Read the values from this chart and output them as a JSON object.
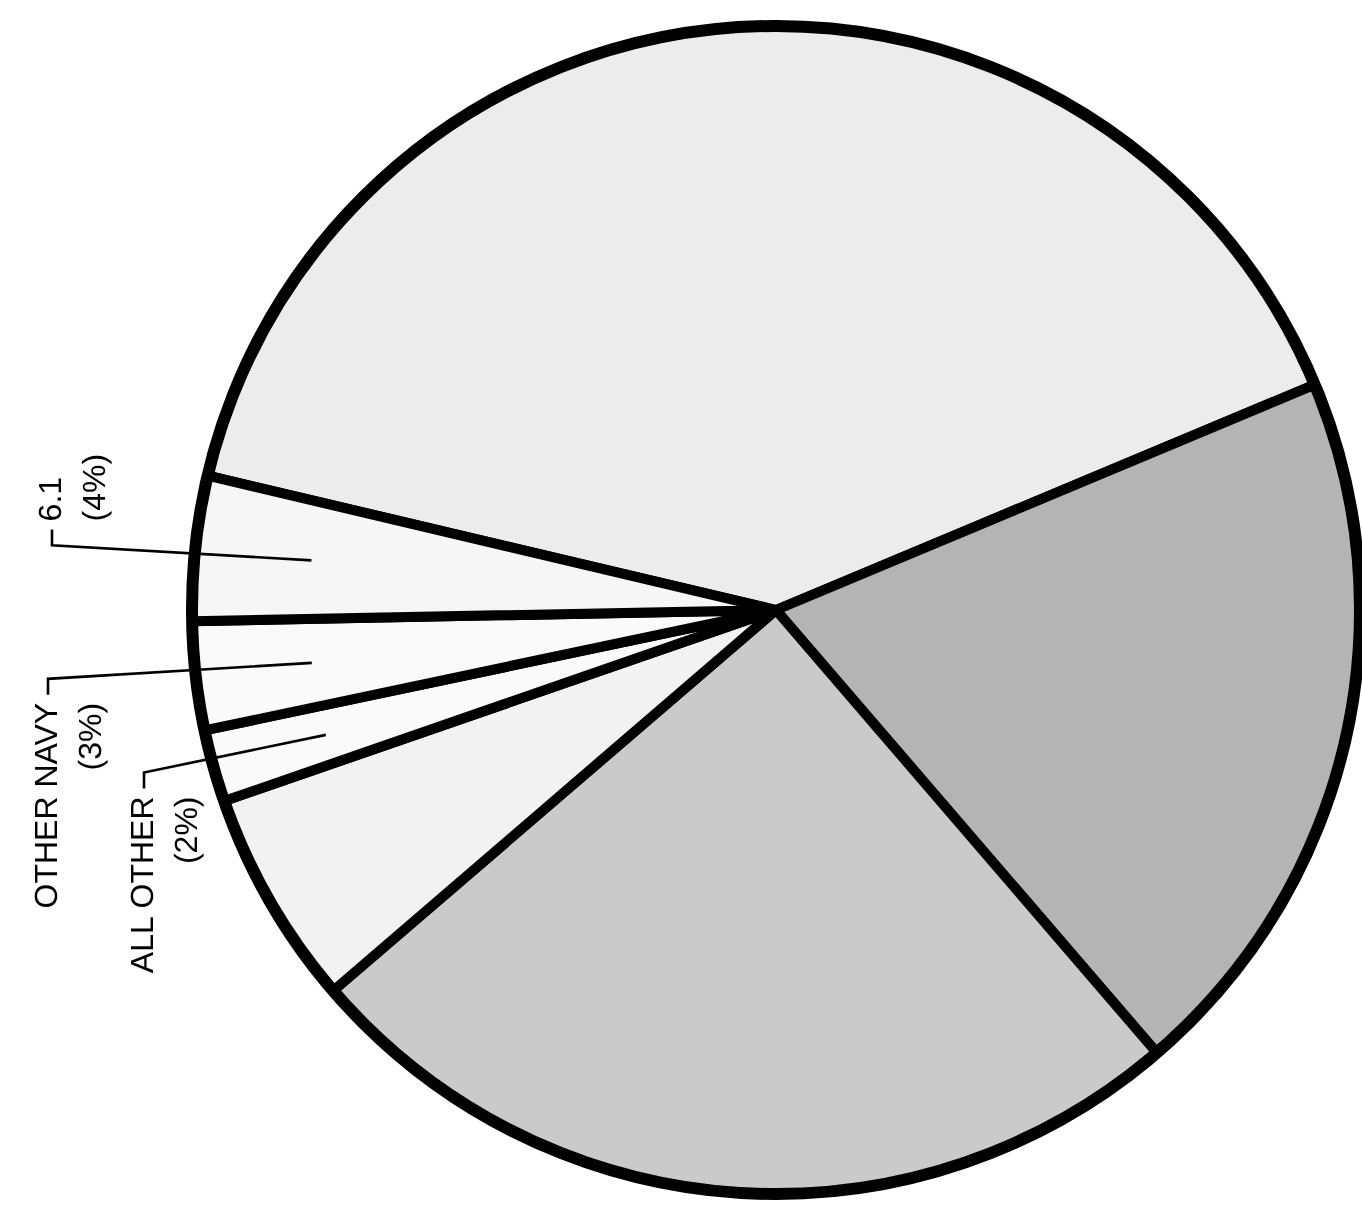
{
  "chart_data": {
    "type": "pie",
    "categories": [
      null,
      null,
      null,
      null,
      "ALL OTHER",
      "OTHER NAVY",
      "6.1"
    ],
    "values": [
      40,
      20,
      25,
      6,
      2,
      3,
      4
    ],
    "value_labels": [
      null,
      null,
      null,
      null,
      "(2%)",
      "(3%)",
      "(4%)"
    ],
    "colors": [
      "#ececec",
      "#b4b4b4",
      "#cacaca",
      "#f2f2f2",
      "#fafafa",
      "#fafafa",
      "#f6f6f6"
    ]
  }
}
